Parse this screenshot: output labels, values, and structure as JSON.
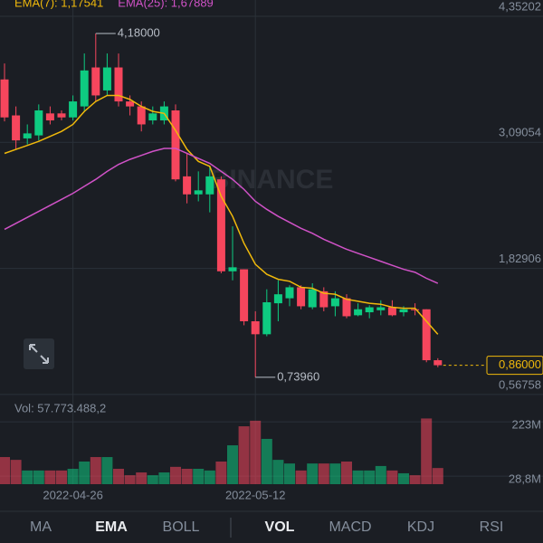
{
  "chart_data": {
    "type": "candlestick",
    "x": [
      null,
      null,
      null,
      null,
      null,
      null,
      "2022-04-26",
      null,
      null,
      null,
      null,
      null,
      null,
      null,
      null,
      null,
      null,
      null,
      null,
      null,
      null,
      null,
      "2022-05-12",
      null,
      null,
      null,
      null,
      null,
      null,
      null,
      null,
      null,
      null,
      null,
      null,
      null,
      null,
      null,
      null
    ],
    "open": [
      3.72,
      3.36,
      3.13,
      3.16,
      3.38,
      3.38,
      3.34,
      3.45,
      3.84,
      3.61,
      3.84,
      3.5,
      3.45,
      3.31,
      3.31,
      3.41,
      2.75,
      2.57,
      2.57,
      2.72,
      1.8,
      1.82,
      1.3,
      1.17,
      1.48,
      1.53,
      1.64,
      1.44,
      1.6,
      1.45,
      1.53,
      1.36,
      1.39,
      1.41,
      1.44,
      1.39,
      1.42,
      1.42,
      0.91
    ],
    "high": [
      3.88,
      3.45,
      3.27,
      3.47,
      3.45,
      3.41,
      3.56,
      3.98,
      4.18,
      3.98,
      3.98,
      3.56,
      3.5,
      3.45,
      3.5,
      3.47,
      2.98,
      2.8,
      2.85,
      2.75,
      2.25,
      1.82,
      1.4,
      1.62,
      1.71,
      1.66,
      1.66,
      1.68,
      1.64,
      1.6,
      1.57,
      1.48,
      1.46,
      1.51,
      1.51,
      1.45,
      1.48,
      1.42,
      0.93
    ],
    "low": [
      3.3,
      3.02,
      3.07,
      3.11,
      3.27,
      3.31,
      3.31,
      3.4,
      3.5,
      3.56,
      3.45,
      3.36,
      3.2,
      3.27,
      3.27,
      2.7,
      2.48,
      2.5,
      2.39,
      1.78,
      1.71,
      1.26,
      0.7396,
      1.15,
      1.3,
      1.45,
      1.42,
      1.42,
      1.4,
      1.35,
      1.33,
      1.35,
      1.33,
      1.36,
      1.35,
      1.35,
      1.36,
      0.89,
      0.84
    ],
    "close": [
      3.34,
      3.11,
      3.18,
      3.41,
      3.31,
      3.34,
      3.5,
      3.81,
      3.56,
      3.84,
      3.5,
      3.45,
      3.27,
      3.38,
      3.45,
      2.72,
      2.57,
      2.61,
      2.75,
      1.8,
      1.84,
      1.3,
      1.17,
      1.49,
      1.57,
      1.64,
      1.45,
      1.62,
      1.44,
      1.53,
      1.35,
      1.42,
      1.44,
      1.44,
      1.36,
      1.42,
      1.41,
      0.91,
      0.86
    ],
    "up_color": "#0ecb81",
    "down_color": "#f6465d",
    "series": [
      {
        "name": "EMA(7): 1,17541",
        "color": "#f0b90b",
        "values": [
          2.98,
          3.02,
          3.06,
          3.1,
          3.15,
          3.2,
          3.27,
          3.4,
          3.5,
          3.56,
          3.56,
          3.52,
          3.45,
          3.4,
          3.38,
          3.21,
          3.02,
          2.9,
          2.85,
          2.55,
          2.35,
          2.08,
          1.87,
          1.77,
          1.72,
          1.7,
          1.64,
          1.63,
          1.58,
          1.57,
          1.52,
          1.5,
          1.48,
          1.47,
          1.44,
          1.43,
          1.43,
          1.3,
          1.17
        ]
      },
      {
        "name": "EMA(25): 1,67889",
        "color": "#d052c7",
        "values": [
          2.22,
          2.28,
          2.34,
          2.4,
          2.46,
          2.52,
          2.58,
          2.65,
          2.72,
          2.8,
          2.87,
          2.92,
          2.96,
          3.0,
          3.03,
          3.03,
          2.98,
          2.93,
          2.88,
          2.8,
          2.72,
          2.62,
          2.5,
          2.42,
          2.35,
          2.29,
          2.23,
          2.18,
          2.12,
          2.07,
          2.02,
          1.98,
          1.94,
          1.9,
          1.86,
          1.82,
          1.79,
          1.73,
          1.68
        ]
      }
    ],
    "ylim": [
      0.53,
      4.515
    ],
    "yticks": [
      {
        "value": 4.35202,
        "label": "4,35202"
      },
      {
        "value": 3.09054,
        "label": "3,09054"
      },
      {
        "value": 1.82906,
        "label": "1,82906"
      },
      {
        "value": 0.56758,
        "label": "0,56758"
      }
    ],
    "annotations": [
      {
        "value": 4.18,
        "label": "4,18000",
        "candle": 8
      },
      {
        "value": 0.7396,
        "label": "0,73960",
        "candle": 22
      }
    ],
    "current_price": {
      "value": 0.86,
      "label": "0,86000",
      "color": "#f0b90b"
    },
    "watermark": "BINANCE",
    "grid": true,
    "volume": {
      "title": "Vol: 57.773.488,2",
      "values": [
        97,
        87,
        49,
        49,
        49,
        49,
        55,
        81,
        97,
        97,
        55,
        32,
        42,
        32,
        42,
        62,
        55,
        55,
        49,
        81,
        139,
        207,
        227,
        162,
        87,
        74,
        49,
        74,
        74,
        74,
        81,
        49,
        49,
        65,
        49,
        39,
        32,
        235,
        57.773
      ],
      "ylim": [
        0,
        259
      ],
      "yticks": [
        {
          "value": 223,
          "label": "223M"
        },
        {
          "value": 28.8,
          "label": "28,8M"
        }
      ]
    }
  },
  "tabs": {
    "left": [
      "MA",
      "EMA",
      "BOLL"
    ],
    "left_active": 1,
    "right": [
      "VOL",
      "MACD",
      "KDJ",
      "RSI"
    ],
    "right_active": 0
  }
}
